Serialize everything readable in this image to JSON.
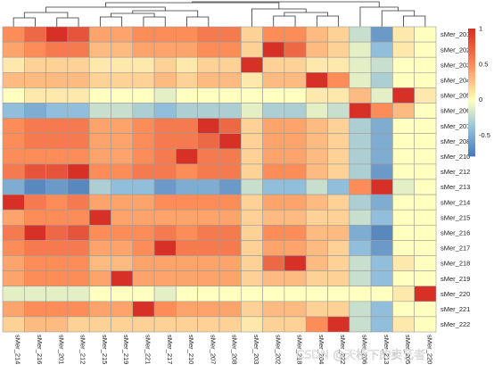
{
  "watermark": "CSDN @天桥下的卖艺者",
  "chart_data": {
    "type": "heatmap",
    "title": "",
    "rows": [
      "sMer_201",
      "sMer_202",
      "sMer_203",
      "sMer_204",
      "sMer_205",
      "sMer_206",
      "sMer_207",
      "sMer_208",
      "sMer_210",
      "sMer_212",
      "sMer_213",
      "sMer_214",
      "sMer_215",
      "sMer_216",
      "sMer_217",
      "sMer_218",
      "sMer_219",
      "sMer_220",
      "sMer_221",
      "sMer_222"
    ],
    "columns": [
      "sMer_214",
      "sMer_216",
      "sMer_201",
      "sMer_212",
      "sMer_215",
      "sMer_219",
      "sMer_221",
      "sMer_217",
      "sMer_210",
      "sMer_207",
      "sMer_208",
      "sMer_203",
      "sMer_202",
      "sMer_218",
      "sMer_204",
      "sMer_222",
      "sMer_206",
      "sMer_213",
      "sMer_205",
      "sMer_220"
    ],
    "values": [
      [
        0.5,
        0.7,
        1.0,
        0.8,
        0.4,
        0.4,
        0.5,
        0.5,
        0.5,
        0.6,
        0.6,
        0.2,
        0.5,
        0.5,
        0.3,
        0.2,
        -0.2,
        -0.6,
        0.1,
        0.0
      ],
      [
        0.4,
        0.5,
        0.6,
        0.6,
        0.3,
        0.3,
        0.4,
        0.4,
        0.4,
        0.5,
        0.5,
        0.2,
        1.0,
        0.7,
        0.3,
        0.2,
        -0.1,
        -0.4,
        0.1,
        0.0
      ],
      [
        0.1,
        0.2,
        0.2,
        0.2,
        0.1,
        0.1,
        0.1,
        0.2,
        0.1,
        0.2,
        0.2,
        1.0,
        0.2,
        0.2,
        0.1,
        0.1,
        -0.1,
        -0.2,
        0.0,
        0.0
      ],
      [
        0.3,
        0.3,
        0.3,
        0.3,
        0.2,
        0.2,
        0.2,
        0.3,
        0.2,
        0.3,
        0.3,
        0.1,
        0.3,
        0.3,
        1.0,
        0.5,
        -0.1,
        -0.3,
        0.0,
        0.0
      ],
      [
        0.0,
        0.1,
        0.1,
        0.1,
        0.0,
        0.0,
        0.0,
        -0.1,
        0.0,
        0.0,
        0.0,
        0.0,
        0.0,
        0.0,
        0.1,
        0.1,
        0.3,
        -0.1,
        1.0,
        0.1
      ],
      [
        -0.4,
        -0.5,
        -0.4,
        -0.4,
        -0.2,
        -0.2,
        -0.3,
        -0.4,
        -0.3,
        -0.3,
        -0.3,
        -0.1,
        -0.3,
        -0.3,
        -0.1,
        -0.2,
        1.0,
        0.5,
        0.3,
        0.0
      ],
      [
        0.5,
        0.6,
        0.6,
        0.6,
        0.4,
        0.4,
        0.5,
        0.6,
        0.6,
        1.0,
        0.7,
        0.2,
        0.4,
        0.4,
        0.3,
        0.2,
        -0.3,
        -0.5,
        0.0,
        0.0
      ],
      [
        0.5,
        0.6,
        0.6,
        0.6,
        0.4,
        0.4,
        0.5,
        0.6,
        0.6,
        0.7,
        1.0,
        0.2,
        0.4,
        0.4,
        0.3,
        0.2,
        -0.3,
        -0.5,
        0.0,
        0.0
      ],
      [
        0.5,
        0.5,
        0.5,
        0.5,
        0.4,
        0.4,
        0.5,
        0.6,
        1.0,
        0.6,
        0.6,
        0.2,
        0.4,
        0.4,
        0.3,
        0.2,
        -0.3,
        -0.5,
        0.0,
        0.0
      ],
      [
        0.6,
        0.8,
        0.8,
        1.0,
        0.5,
        0.5,
        0.6,
        0.6,
        0.5,
        0.6,
        0.6,
        0.2,
        0.5,
        0.5,
        0.3,
        0.2,
        -0.3,
        -0.6,
        0.0,
        0.0
      ],
      [
        -0.5,
        -0.7,
        -0.6,
        -0.7,
        -0.3,
        -0.4,
        -0.4,
        -0.6,
        -0.5,
        -0.5,
        -0.6,
        -0.2,
        -0.4,
        -0.4,
        -0.2,
        -0.4,
        0.5,
        1.0,
        -0.1,
        0.0
      ],
      [
        1.0,
        0.6,
        0.5,
        0.6,
        0.4,
        0.4,
        0.4,
        0.5,
        0.5,
        0.5,
        0.5,
        0.2,
        0.4,
        0.4,
        0.3,
        0.2,
        -0.3,
        -0.5,
        0.0,
        0.0
      ],
      [
        0.4,
        0.5,
        0.5,
        0.5,
        1.0,
        0.4,
        0.4,
        0.4,
        0.4,
        0.4,
        0.4,
        0.2,
        0.3,
        0.3,
        0.2,
        0.2,
        -0.2,
        -0.4,
        0.0,
        0.0
      ],
      [
        0.6,
        1.0,
        0.7,
        0.8,
        0.5,
        0.5,
        0.5,
        0.6,
        0.5,
        0.6,
        0.6,
        0.2,
        0.5,
        0.5,
        0.3,
        0.3,
        -0.5,
        -0.7,
        0.0,
        0.0
      ],
      [
        0.5,
        0.6,
        0.6,
        0.6,
        0.4,
        0.4,
        0.5,
        1.0,
        0.6,
        0.6,
        0.6,
        0.2,
        0.4,
        0.4,
        0.3,
        0.2,
        -0.4,
        -0.6,
        0.0,
        0.0
      ],
      [
        0.4,
        0.5,
        0.5,
        0.5,
        0.3,
        0.3,
        0.4,
        0.4,
        0.4,
        0.4,
        0.4,
        0.2,
        0.7,
        1.0,
        0.3,
        0.2,
        -0.2,
        -0.4,
        0.1,
        0.0
      ],
      [
        0.4,
        0.5,
        0.5,
        0.5,
        0.4,
        1.0,
        0.4,
        0.4,
        0.4,
        0.4,
        0.4,
        0.2,
        0.3,
        0.3,
        0.2,
        0.2,
        -0.2,
        -0.4,
        0.0,
        0.0
      ],
      [
        -0.1,
        -0.1,
        -0.1,
        -0.1,
        0.0,
        0.0,
        0.0,
        -0.1,
        0.0,
        0.0,
        0.0,
        0.0,
        0.0,
        0.0,
        0.0,
        0.0,
        0.0,
        0.0,
        0.1,
        1.0
      ],
      [
        0.4,
        0.5,
        0.5,
        0.5,
        0.4,
        0.4,
        1.0,
        0.5,
        0.4,
        0.4,
        0.4,
        0.2,
        0.3,
        0.3,
        0.2,
        0.2,
        -0.2,
        -0.4,
        0.0,
        0.0
      ],
      [
        0.2,
        0.3,
        0.3,
        0.2,
        0.2,
        0.2,
        0.2,
        0.2,
        0.2,
        0.2,
        0.2,
        0.1,
        0.2,
        0.2,
        0.5,
        1.0,
        -0.2,
        -0.4,
        0.1,
        0.0
      ]
    ],
    "color_scale": {
      "min": -0.8,
      "max": 1.0,
      "stops": [
        {
          "value": -0.8,
          "color": "#4575b4"
        },
        {
          "value": -0.4,
          "color": "#91bfdb"
        },
        {
          "value": 0.0,
          "color": "#ffffbf"
        },
        {
          "value": 0.5,
          "color": "#fc8d59"
        },
        {
          "value": 1.0,
          "color": "#d73027"
        }
      ],
      "ticks": [
        {
          "value": 1,
          "label": "1"
        },
        {
          "value": 0.5,
          "label": "0.5"
        },
        {
          "value": 0,
          "label": "0"
        },
        {
          "value": -0.5,
          "label": "-0.5"
        }
      ]
    },
    "column_dendrogram": true,
    "row_dendrogram": false,
    "legend": "right"
  }
}
